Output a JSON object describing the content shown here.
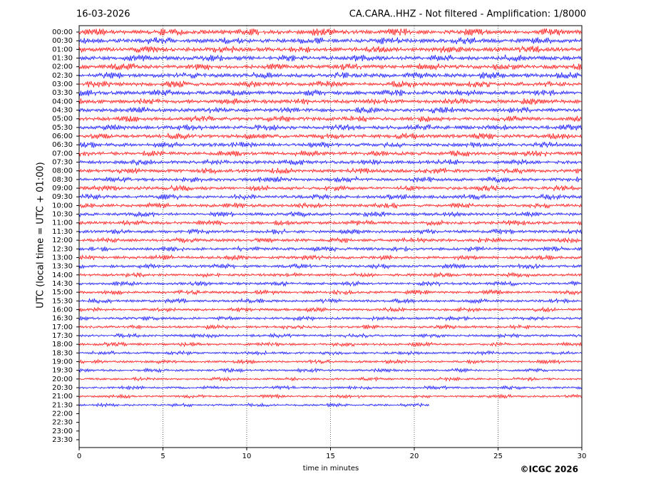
{
  "chart_data": {
    "type": "helicorder",
    "title": "CA.CARA..HHZ - Not filtered - Amplification: 1/8000",
    "date": "16-03-2026",
    "xlabel": "time in minutes",
    "ylabel": "UTC (local time = UTC + 01:00)",
    "credit": "©ICGC 2026",
    "categories": [
      "00:00",
      "00:30",
      "01:00",
      "01:30",
      "02:00",
      "02:30",
      "03:00",
      "03:30",
      "04:00",
      "04:30",
      "05:00",
      "05:30",
      "06:00",
      "06:30",
      "07:00",
      "07:30",
      "08:00",
      "08:30",
      "09:00",
      "09:30",
      "10:00",
      "10:30",
      "11:00",
      "11:30",
      "12:00",
      "12:30",
      "13:00",
      "13:30",
      "14:00",
      "14:30",
      "15:00",
      "15:30",
      "16:00",
      "16:30",
      "17:00",
      "17:30",
      "18:00",
      "18:30",
      "19:00",
      "19:30",
      "20:00",
      "20:30",
      "21:00",
      "21:30",
      "22:00",
      "22:30",
      "23:00",
      "23:30"
    ],
    "values": [
      30,
      30,
      30,
      30,
      30,
      30,
      30,
      30,
      30,
      30,
      30,
      30,
      30,
      30,
      30,
      30,
      30,
      30,
      30,
      30,
      30,
      30,
      30,
      30,
      30,
      30,
      30,
      30,
      30,
      30,
      30,
      30,
      30,
      30,
      30,
      30,
      30,
      30,
      30,
      30,
      30,
      30,
      30,
      20.9,
      null,
      null,
      null,
      null
    ],
    "colors": [
      "#ff0000",
      "#0000ff"
    ],
    "xlim": [
      0,
      30
    ],
    "xticks": [
      0,
      5,
      10,
      15,
      20,
      25,
      30
    ],
    "grid": true
  }
}
